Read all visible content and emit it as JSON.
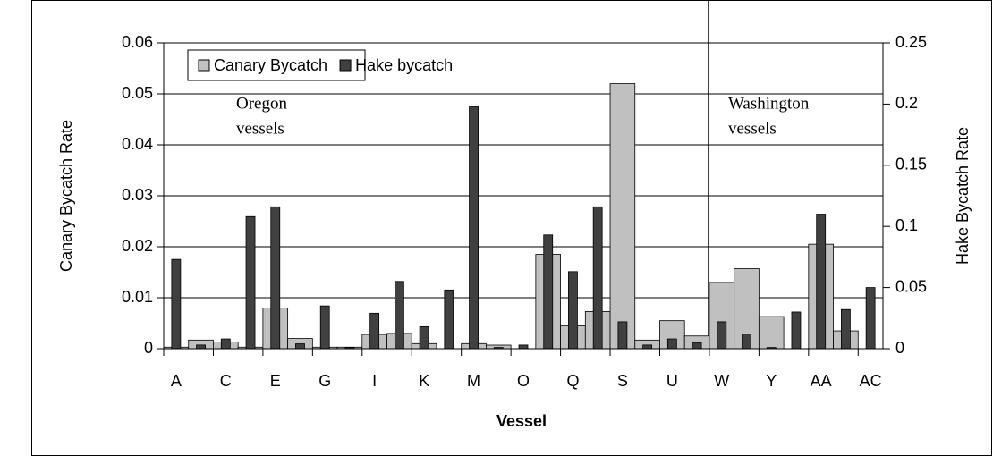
{
  "chart_data": {
    "type": "bar",
    "xlabel": "Vessel",
    "ylabel": "Canary Bycatch Rate",
    "y2label": "Hake Bycatch Rate",
    "annotations": [
      "Oregon",
      "vessels",
      "Washington",
      "vessels"
    ],
    "categories": [
      "A",
      null,
      "C",
      null,
      "E",
      null,
      "G",
      null,
      "I",
      null,
      "K",
      null,
      "M",
      null,
      "O",
      null,
      "Q",
      null,
      "S",
      null,
      "U",
      null,
      "W",
      null,
      "Y",
      null,
      "AA",
      null,
      "AC"
    ],
    "series": [
      {
        "name": "Canary Bycatch",
        "color": "#c0c0c0",
        "values": [
          0.0003,
          0.0017,
          0.0013,
          0.0003,
          0.008,
          0.002,
          0.0003,
          0.0003,
          0.0028,
          0.003,
          0.001,
          0,
          0.001,
          0.0007,
          0,
          0.0185,
          0.0045,
          0.0073,
          0.052,
          0.0017,
          0.0055,
          0.0025,
          0.013,
          0.0157,
          0.0063,
          0,
          0.0205,
          0.0035,
          0
        ]
      },
      {
        "name": "Hake bycatch",
        "color": "#404040",
        "axis": "y2",
        "values": [
          0.073,
          0.003,
          0.008,
          0.108,
          0.116,
          0.004,
          0.035,
          0.001,
          0.029,
          0.055,
          0.018,
          0.048,
          0.198,
          0.001,
          0.003,
          0.093,
          0.063,
          0.116,
          0.022,
          0.003,
          0.008,
          0.005,
          0.022,
          0.012,
          0.001,
          0.03,
          0.11,
          0.032,
          0.05
        ]
      }
    ],
    "ylim": [
      0,
      0.06
    ],
    "yticks": [
      0,
      0.01,
      0.02,
      0.03,
      0.04,
      0.05,
      0.06
    ],
    "y2lim": [
      0,
      0.25
    ],
    "y2ticks": [
      0,
      0.05,
      0.1,
      0.15,
      0.2,
      0.25
    ],
    "grid": true,
    "legend": "top-left"
  }
}
